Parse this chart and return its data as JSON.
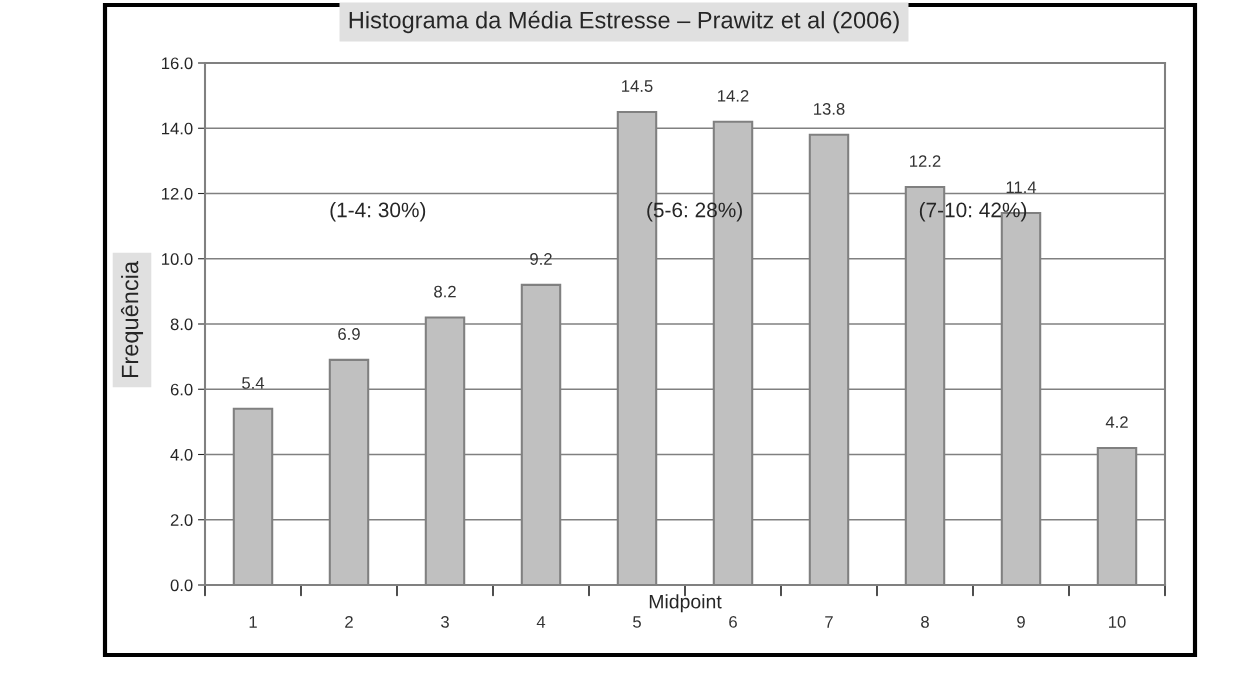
{
  "chart_data": {
    "type": "bar",
    "title": "Histograma da Média Estresse – Prawitz et al (2006)",
    "xlabel": "Midpoint",
    "ylabel": "Frequência",
    "categories": [
      "1",
      "2",
      "3",
      "4",
      "5",
      "6",
      "7",
      "8",
      "9",
      "10"
    ],
    "values": [
      5.4,
      6.9,
      8.2,
      9.2,
      14.5,
      14.2,
      13.8,
      12.2,
      11.4,
      4.2
    ],
    "color": "#c0c0c0",
    "ylim": [
      0,
      16
    ],
    "yticks": [
      {
        "value": 0,
        "label": "0.0"
      },
      {
        "value": 2,
        "label": "2.0"
      },
      {
        "value": 4,
        "label": "4.0"
      },
      {
        "value": 6,
        "label": "6.0"
      },
      {
        "value": 8,
        "label": "8.0"
      },
      {
        "value": 10,
        "label": "10.0"
      },
      {
        "value": 12,
        "label": "12.0"
      },
      {
        "value": 14,
        "label": "14.0"
      },
      {
        "value": 16,
        "label": "16.0"
      }
    ],
    "grid": "y",
    "data_labels": true,
    "annotations": [
      "(1-4: 30%)",
      "(5-6: 28%)",
      "(7-10: 42%)"
    ]
  }
}
